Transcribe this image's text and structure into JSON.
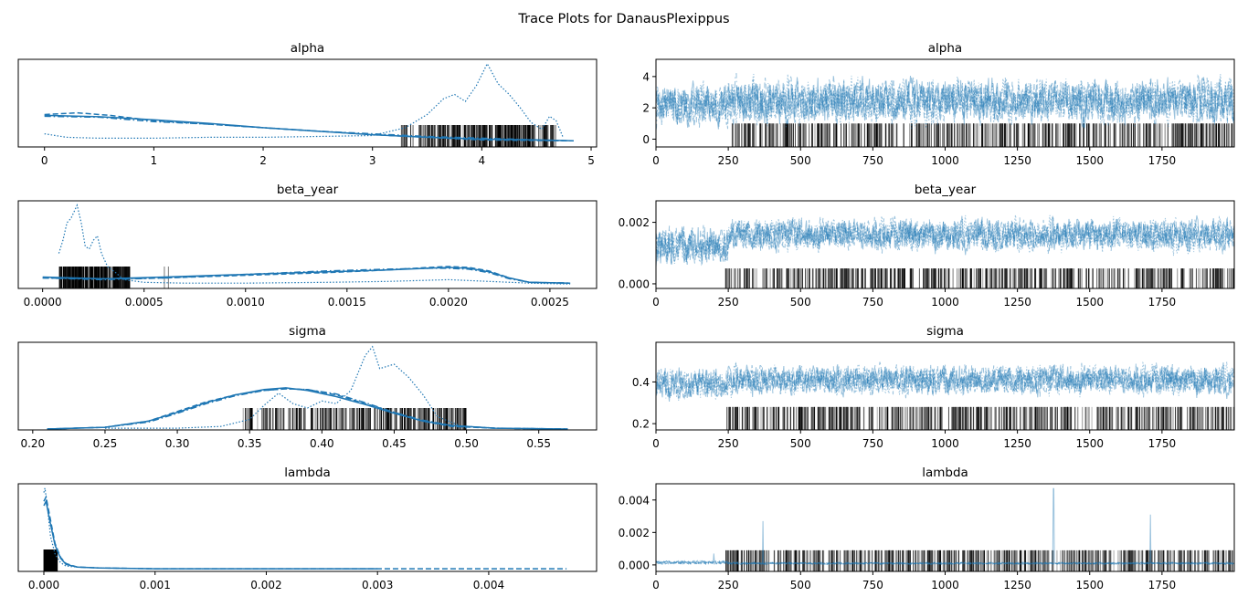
{
  "figure": {
    "title": "Trace Plots for DanausPlexippus"
  },
  "colors": {
    "line": "#1f77b4",
    "trace": "#1f77b4",
    "rug": "#000000",
    "axis": "#000000"
  },
  "chart_data": [
    {
      "type": "line",
      "panel": "density",
      "title": "alpha",
      "xlim": [
        -0.24,
        5.05
      ],
      "ylim": [
        0,
        1
      ],
      "xticks": [
        0,
        1,
        2,
        3,
        4,
        5
      ],
      "tick_labels": [
        "0",
        "1",
        "2",
        "3",
        "4",
        "5"
      ],
      "grid": false,
      "series": [
        {
          "style": "solid",
          "x": [
            0,
            0.5,
            1,
            1.5,
            2,
            2.5,
            3,
            3.5,
            4,
            4.5,
            4.84
          ],
          "y": [
            0.36,
            0.345,
            0.31,
            0.27,
            0.22,
            0.18,
            0.14,
            0.11,
            0.09,
            0.08,
            0.07
          ]
        },
        {
          "style": "dashed",
          "x": [
            0,
            0.3,
            0.6,
            1,
            1.5,
            2,
            2.5,
            3,
            3.5,
            4,
            4.84
          ],
          "y": [
            0.37,
            0.39,
            0.36,
            0.3,
            0.26,
            0.22,
            0.18,
            0.14,
            0.11,
            0.08,
            0.07
          ]
        },
        {
          "style": "dashdot",
          "x": [
            0,
            0.5,
            1,
            1.5,
            2,
            2.5,
            3,
            3.5,
            4,
            4.5,
            4.84
          ],
          "y": [
            0.35,
            0.34,
            0.29,
            0.26,
            0.22,
            0.18,
            0.15,
            0.12,
            0.1,
            0.08,
            0.07
          ]
        },
        {
          "style": "dotted",
          "x": [
            0,
            0.2,
            0.5,
            1,
            1.5,
            2,
            2.5,
            3,
            3.3,
            3.5,
            3.65,
            3.75,
            3.85,
            3.95,
            4.05,
            4.15,
            4.25,
            4.35,
            4.45,
            4.55,
            4.62,
            4.68,
            4.74
          ],
          "y": [
            0.15,
            0.11,
            0.1,
            0.1,
            0.11,
            0.11,
            0.12,
            0.13,
            0.22,
            0.37,
            0.55,
            0.6,
            0.52,
            0.7,
            0.95,
            0.72,
            0.6,
            0.45,
            0.28,
            0.2,
            0.35,
            0.3,
            0.12
          ]
        }
      ],
      "rug": {
        "x_range": [
          3.25,
          4.68
        ],
        "gap": [
          3.32,
          3.42
        ],
        "height": 0.25
      }
    },
    {
      "type": "line",
      "panel": "trace",
      "title": "alpha",
      "xlim": [
        0,
        2000
      ],
      "ylim": [
        -0.5,
        5.1
      ],
      "xticks": [
        0,
        250,
        500,
        750,
        1000,
        1250,
        1500,
        1750
      ],
      "xtick_labels": [
        "0",
        "250",
        "500",
        "750",
        "1000",
        "1250",
        "1500",
        "1750"
      ],
      "yticks": [
        0,
        2,
        4
      ],
      "ytick_labels": [
        "0",
        "2",
        "4"
      ],
      "trace": {
        "n": 2000,
        "band_early": [
          0.1,
          4.2
        ],
        "band_late": [
          0.3,
          4.6
        ],
        "switch_at": 250
      },
      "divergence_rug": {
        "start": 260,
        "end": 2000,
        "top": 1.0
      }
    },
    {
      "type": "line",
      "panel": "density",
      "title": "beta_year",
      "xlim": [
        -0.00012,
        0.00273
      ],
      "ylim": [
        0,
        1
      ],
      "xticks": [
        0,
        0.0005,
        0.001,
        0.0015,
        0.002,
        0.0025
      ],
      "tick_labels": [
        "0.0000",
        "0.0005",
        "0.0010",
        "0.0015",
        "0.0020",
        "0.0025"
      ],
      "grid": false,
      "series": [
        {
          "style": "solid",
          "x": [
            0,
            0.0003,
            0.0006,
            0.001,
            0.0014,
            0.0017,
            0.0019,
            0.002,
            0.0021,
            0.0022,
            0.0023,
            0.0024,
            0.0026
          ],
          "y": [
            0.13,
            0.11,
            0.13,
            0.16,
            0.19,
            0.21,
            0.23,
            0.24,
            0.23,
            0.19,
            0.12,
            0.07,
            0.06
          ]
        },
        {
          "style": "dashed",
          "x": [
            0,
            0.0003,
            0.0006,
            0.001,
            0.0014,
            0.0017,
            0.0019,
            0.002,
            0.0021,
            0.0022,
            0.0023,
            0.0024,
            0.0026
          ],
          "y": [
            0.12,
            0.11,
            0.12,
            0.15,
            0.18,
            0.21,
            0.24,
            0.25,
            0.24,
            0.2,
            0.12,
            0.07,
            0.06
          ]
        },
        {
          "style": "dashdot",
          "x": [
            0,
            0.0003,
            0.0006,
            0.001,
            0.0014,
            0.0017,
            0.0019,
            0.002,
            0.0021,
            0.0022,
            0.0023,
            0.0024,
            0.0026
          ],
          "y": [
            0.12,
            0.1,
            0.12,
            0.16,
            0.2,
            0.22,
            0.23,
            0.23,
            0.22,
            0.18,
            0.11,
            0.07,
            0.06
          ]
        },
        {
          "style": "dotted",
          "x": [
            8e-05,
            0.0001,
            0.00012,
            0.00014,
            0.00017,
            0.00019,
            0.00021,
            0.00023,
            0.00025,
            0.00027,
            0.00029,
            0.00032,
            0.00036,
            0.0004,
            0.0005,
            0.0007,
            0.001,
            0.0014,
            0.0017,
            0.002,
            0.0022,
            0.0024,
            0.0026
          ],
          "y": [
            0.4,
            0.55,
            0.75,
            0.8,
            0.95,
            0.75,
            0.48,
            0.45,
            0.55,
            0.6,
            0.4,
            0.25,
            0.18,
            0.1,
            0.07,
            0.06,
            0.06,
            0.07,
            0.08,
            0.1,
            0.08,
            0.06,
            0.05
          ]
        }
      ],
      "rug": {
        "x_range": [
          8e-05,
          0.00043
        ],
        "outliers": [
          0.0006,
          0.00062
        ],
        "height": 0.25
      }
    },
    {
      "type": "line",
      "panel": "trace",
      "title": "beta_year",
      "xlim": [
        0,
        2000
      ],
      "ylim": [
        -0.00015,
        0.0027
      ],
      "xticks": [
        0,
        250,
        500,
        750,
        1000,
        1250,
        1500,
        1750
      ],
      "xtick_labels": [
        "0",
        "250",
        "500",
        "750",
        "1000",
        "1250",
        "1500",
        "1750"
      ],
      "yticks": [
        0,
        0.002
      ],
      "ytick_labels": [
        "0.000",
        "0.002"
      ],
      "trace": {
        "n": 2000,
        "band_early": [
          0.0003,
          0.0022
        ],
        "band_late": [
          0.0008,
          0.0024
        ],
        "switch_at": 250
      },
      "divergence_rug": {
        "start": 240,
        "end": 2000,
        "top": 0.0005
      }
    },
    {
      "type": "line",
      "panel": "density",
      "title": "sigma",
      "xlim": [
        0.19,
        0.59
      ],
      "ylim": [
        0,
        1
      ],
      "xticks": [
        0.2,
        0.25,
        0.3,
        0.35,
        0.4,
        0.45,
        0.5,
        0.55
      ],
      "tick_labels": [
        "0.20",
        "0.25",
        "0.30",
        "0.35",
        "0.40",
        "0.45",
        "0.50",
        "0.55"
      ],
      "grid": false,
      "series": [
        {
          "style": "solid",
          "x": [
            0.21,
            0.25,
            0.28,
            0.3,
            0.32,
            0.34,
            0.36,
            0.375,
            0.39,
            0.41,
            0.43,
            0.45,
            0.47,
            0.49,
            0.52,
            0.57
          ],
          "y": [
            0.01,
            0.03,
            0.1,
            0.2,
            0.31,
            0.4,
            0.46,
            0.48,
            0.45,
            0.38,
            0.29,
            0.19,
            0.1,
            0.05,
            0.02,
            0.01
          ]
        },
        {
          "style": "dashed",
          "x": [
            0.21,
            0.25,
            0.28,
            0.3,
            0.32,
            0.34,
            0.36,
            0.375,
            0.39,
            0.41,
            0.43,
            0.45,
            0.47,
            0.49,
            0.52,
            0.57
          ],
          "y": [
            0.01,
            0.03,
            0.1,
            0.21,
            0.32,
            0.4,
            0.45,
            0.47,
            0.46,
            0.4,
            0.3,
            0.2,
            0.1,
            0.04,
            0.02,
            0.01
          ]
        },
        {
          "style": "dashdot",
          "x": [
            0.21,
            0.25,
            0.28,
            0.3,
            0.32,
            0.34,
            0.36,
            0.375,
            0.39,
            0.41,
            0.43,
            0.45,
            0.47,
            0.49,
            0.52,
            0.57
          ],
          "y": [
            0.01,
            0.03,
            0.09,
            0.19,
            0.3,
            0.39,
            0.45,
            0.47,
            0.46,
            0.41,
            0.31,
            0.2,
            0.11,
            0.05,
            0.02,
            0.01
          ]
        },
        {
          "style": "dotted",
          "x": [
            0.25,
            0.3,
            0.33,
            0.35,
            0.36,
            0.37,
            0.38,
            0.39,
            0.4,
            0.41,
            0.42,
            0.43,
            0.435,
            0.44,
            0.45,
            0.46,
            0.47,
            0.48,
            0.5
          ],
          "y": [
            0.02,
            0.02,
            0.04,
            0.12,
            0.28,
            0.42,
            0.3,
            0.25,
            0.33,
            0.3,
            0.45,
            0.85,
            0.95,
            0.7,
            0.75,
            0.6,
            0.4,
            0.15,
            0.02
          ]
        }
      ],
      "rug": {
        "x_range": [
          0.345,
          0.5
        ],
        "gap": [
          0.352,
          0.358
        ],
        "height": 0.25
      }
    },
    {
      "type": "line",
      "panel": "trace",
      "title": "sigma",
      "xlim": [
        0,
        2000
      ],
      "ylim": [
        0.17,
        0.59
      ],
      "xticks": [
        0,
        250,
        500,
        750,
        1000,
        1250,
        1500,
        1750
      ],
      "xtick_labels": [
        "0",
        "250",
        "500",
        "750",
        "1000",
        "1250",
        "1500",
        "1750"
      ],
      "yticks": [
        0.2,
        0.4
      ],
      "ytick_labels": [
        "0.2",
        "0.4"
      ],
      "trace": {
        "n": 2000,
        "band_early": [
          0.28,
          0.5
        ],
        "band_late": [
          0.3,
          0.52
        ],
        "switch_at": 250
      },
      "divergence_rug": {
        "start": 240,
        "end": 2000,
        "top": 0.28
      }
    },
    {
      "type": "line",
      "panel": "density",
      "title": "lambda",
      "xlim": [
        -0.00023,
        0.00497
      ],
      "ylim": [
        0,
        1
      ],
      "xticks": [
        0,
        0.001,
        0.002,
        0.003,
        0.004
      ],
      "tick_labels": [
        "0.000",
        "0.001",
        "0.002",
        "0.003",
        "0.004"
      ],
      "grid": false,
      "series": [
        {
          "style": "solid",
          "x": [
            0,
            2e-05,
            5e-05,
            0.0001,
            0.00015,
            0.0002,
            0.0003,
            0.0005,
            0.001,
            0.002,
            0.003
          ],
          "y": [
            0.75,
            0.8,
            0.6,
            0.3,
            0.15,
            0.08,
            0.05,
            0.04,
            0.03,
            0.03,
            0.03
          ]
        },
        {
          "style": "dashed",
          "x": [
            0,
            2e-05,
            5e-05,
            0.0001,
            0.00015,
            0.0002,
            0.0003,
            0.0005,
            0.001,
            0.002,
            0.003,
            0.0047
          ],
          "y": [
            0.8,
            0.85,
            0.65,
            0.32,
            0.16,
            0.09,
            0.05,
            0.04,
            0.03,
            0.03,
            0.03,
            0.03
          ]
        },
        {
          "style": "dotted",
          "x": [
            0,
            1e-05,
            3e-05,
            6e-05,
            0.0001,
            0.00015,
            0.0002,
            0.0003,
            0.0005,
            0.001,
            0.002,
            0.003
          ],
          "y": [
            0.9,
            0.95,
            0.75,
            0.4,
            0.2,
            0.1,
            0.06,
            0.05,
            0.04,
            0.03,
            0.03,
            0.03
          ]
        }
      ],
      "rug": {
        "x_range": [
          0,
          0.00012
        ],
        "height": 0.25
      }
    },
    {
      "type": "line",
      "panel": "trace",
      "title": "lambda",
      "xlim": [
        0,
        2000
      ],
      "ylim": [
        -0.0004,
        0.005
      ],
      "xticks": [
        0,
        250,
        500,
        750,
        1000,
        1250,
        1500,
        1750
      ],
      "xtick_labels": [
        "0",
        "250",
        "500",
        "750",
        "1000",
        "1250",
        "1500",
        "1750"
      ],
      "yticks": [
        0,
        0.002,
        0.004
      ],
      "ytick_labels": [
        "0.000",
        "0.002",
        "0.004"
      ],
      "trace": {
        "n": 2000,
        "band_early": [
          0,
          0.0003
        ],
        "band_late": [
          0,
          0.0002
        ],
        "switch_at": 250,
        "spikes": [
          [
            370,
            0.0027
          ],
          [
            1375,
            0.0047
          ],
          [
            1710,
            0.0031
          ],
          [
            200,
            0.0007
          ]
        ]
      },
      "divergence_rug": {
        "start": 240,
        "end": 2000,
        "top": 0.0009
      }
    }
  ]
}
